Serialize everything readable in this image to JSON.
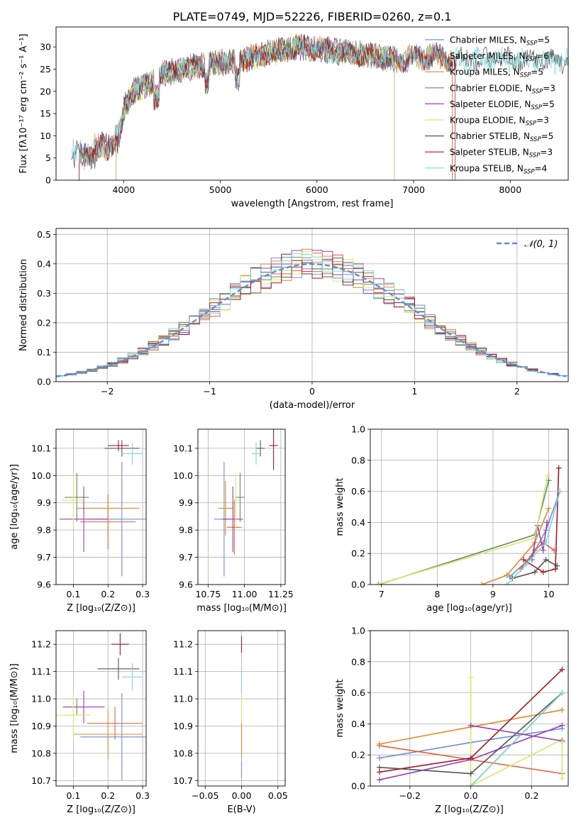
{
  "figure": {
    "title": "PLATE=0749, MJD=52226, FIBERID=0260, z=0.1"
  },
  "colors": {
    "Chabrier MILES": "#6f8ed9",
    "Salpeter MILES": "#e55f3c",
    "Kroupa MILES": "#e08a2e",
    "Chabrier ELODIE": "#5f8f5f",
    "Salpeter ELODIE": "#9a3fb5",
    "Kroupa ELODIE": "#d8e86a",
    "Chabrier STELIB": "#555555",
    "Salpeter STELIB": "#a31826",
    "Kroupa STELIB": "#7fd6db"
  },
  "chart_data": [
    {
      "id": "spectrum",
      "type": "line",
      "title": "PLATE=0749, MJD=52226, FIBERID=0260, z=0.1",
      "xlabel": "wavelength [Angstrom, rest frame]",
      "ylabel": "Flux [fλ10⁻¹⁷ erg cm⁻² s⁻¹ A⁻¹]",
      "xlim": [
        3300,
        8600
      ],
      "ylim": [
        0,
        34.5
      ],
      "xticks": [
        4000,
        5000,
        6000,
        7000,
        8000
      ],
      "yticks": [
        0,
        5,
        10,
        15,
        20,
        25,
        30
      ],
      "grid": false,
      "legend_position": "top-right",
      "legend": [
        {
          "label": "Chabrier MILES, N",
          "sub": "SSP",
          "suffix": "=5",
          "model": "Chabrier MILES"
        },
        {
          "label": "Salpeter MILES, N",
          "sub": "SSP",
          "suffix": "=6",
          "model": "Salpeter MILES"
        },
        {
          "label": "Kroupa MILES, N",
          "sub": "SSP",
          "suffix": "=5",
          "model": "Kroupa MILES"
        },
        {
          "label": "Chabrier ELODIE, N",
          "sub": "SSP",
          "suffix": "=3",
          "model": "Chabrier ELODIE"
        },
        {
          "label": "Salpeter ELODIE, N",
          "sub": "SSP",
          "suffix": "=5",
          "model": "Salpeter ELODIE"
        },
        {
          "label": "Kroupa ELODIE, N",
          "sub": "SSP",
          "suffix": "=3",
          "model": "Kroupa ELODIE"
        },
        {
          "label": "Chabrier STELIB, N",
          "sub": "SSP",
          "suffix": "=5",
          "model": "Chabrier STELIB"
        },
        {
          "label": "Salpeter STELIB, N",
          "sub": "SSP",
          "suffix": "=3",
          "model": "Salpeter STELIB"
        },
        {
          "label": "Kroupa STELIB, N",
          "sub": "SSP",
          "suffix": "=4",
          "model": "Kroupa STELIB"
        }
      ],
      "continuum": {
        "wavelength": [
          3450,
          3600,
          3800,
          3950,
          4000,
          4100,
          4300,
          4400,
          4600,
          4800,
          5000,
          5200,
          5400,
          5600,
          5800,
          6000,
          6200,
          6400,
          6600,
          6800,
          7000,
          7200,
          7400
        ],
        "flux": [
          7,
          7.5,
          9,
          11,
          16,
          20,
          22,
          24,
          25,
          26,
          26.5,
          27,
          28,
          29,
          30,
          29.5,
          29,
          28.5,
          28,
          27,
          27.5,
          28,
          27
        ]
      },
      "range_start": {
        "Chabrier MILES": 3540,
        "Salpeter MILES": 3540,
        "Kroupa MILES": 3540,
        "Chabrier ELODIE": 3920,
        "Salpeter ELODIE": 3920,
        "Kroupa ELODIE": 3920,
        "Chabrier STELIB": 3460,
        "Salpeter STELIB": 3540,
        "Kroupa STELIB": 3460
      },
      "range_end": {
        "Chabrier MILES": 7400,
        "Salpeter MILES": 7400,
        "Kroupa MILES": 7400,
        "Chabrier ELODIE": 6800,
        "Salpeter ELODIE": 6800,
        "Kroupa ELODIE": 6800,
        "Chabrier STELIB": 8600,
        "Salpeter STELIB": 7430,
        "Kroupa STELIB": 8600
      }
    },
    {
      "id": "residuals",
      "type": "line",
      "xlabel": "(data-model)/error",
      "ylabel": "Normed distribution",
      "xlim": [
        -2.5,
        2.5
      ],
      "ylim": [
        0,
        0.52
      ],
      "xticks": [
        -2,
        -1,
        0,
        1,
        2
      ],
      "xtick_labels": [
        "−2",
        "−1",
        "0",
        "1",
        "2"
      ],
      "yticks": [
        0,
        0.1,
        0.2,
        0.3,
        0.4,
        0.5
      ],
      "ytick_labels": [
        "0.0",
        "0.1",
        "0.2",
        "0.3",
        "0.4",
        "0.5"
      ],
      "grid": true,
      "legend_position": "top-right",
      "legend": [
        {
          "label": "𝒩(0, 1)",
          "style": "dashed",
          "color": "#5b8fd9"
        }
      ],
      "bin_width": 0.1
    },
    {
      "id": "age_vs_Z",
      "type": "scatter",
      "xlabel": "Z [log₁₀(Z/Z⊙)]",
      "ylabel": "age  [log₁₀(age/yr)]",
      "xlim": [
        0.05,
        0.31
      ],
      "ylim": [
        9.6,
        10.17
      ],
      "xticks": [
        0.1,
        0.2,
        0.3
      ],
      "yticks": [
        9.6,
        9.7,
        9.8,
        9.9,
        10.0,
        10.1
      ],
      "ytick_labels": [
        "9.6",
        "9.7",
        "9.8",
        "9.9",
        "10.0",
        "10.1"
      ],
      "grid": true,
      "points": [
        {
          "model": "Chabrier MILES",
          "x": 0.24,
          "y": 9.84,
          "xerr": 0.1,
          "yerr": 0.21
        },
        {
          "model": "Salpeter MILES",
          "x": 0.2,
          "y": 9.83,
          "xerr": 0.08,
          "yerr": 0.1
        },
        {
          "model": "Kroupa MILES",
          "x": 0.2,
          "y": 9.88,
          "xerr": 0.09,
          "yerr": 0.05
        },
        {
          "model": "Chabrier ELODIE",
          "x": 0.11,
          "y": 9.92,
          "xerr": 0.035,
          "yerr": 0.09
        },
        {
          "model": "Salpeter ELODIE",
          "x": 0.13,
          "y": 9.84,
          "xerr": 0.07,
          "yerr": 0.12
        },
        {
          "model": "Kroupa ELODIE",
          "x": 0.1,
          "y": 9.91,
          "xerr": 0.035,
          "yerr": 0.1
        },
        {
          "model": "Chabrier STELIB",
          "x": 0.24,
          "y": 10.1,
          "xerr": 0.05,
          "yerr": 0.03
        },
        {
          "model": "Salpeter STELIB",
          "x": 0.23,
          "y": 10.11,
          "xerr": 0.03,
          "yerr": 0.02
        },
        {
          "model": "Kroupa STELIB",
          "x": 0.27,
          "y": 10.08,
          "xerr": 0.03,
          "yerr": 0.04
        }
      ]
    },
    {
      "id": "age_vs_mass",
      "type": "scatter",
      "xlabel": "mass [log₁₀(M/M⊙)]",
      "ylabel": "",
      "xlim": [
        10.68,
        11.28
      ],
      "ylim": [
        9.6,
        10.17
      ],
      "xticks": [
        10.75,
        11.0,
        11.25
      ],
      "xtick_labels": [
        "10.75",
        "11.00",
        "11.25"
      ],
      "yticks": [
        9.6,
        9.7,
        9.8,
        9.9,
        10.0,
        10.1
      ],
      "ytick_labels": [
        "9.6",
        "9.7",
        "9.8",
        "9.9",
        "10.0",
        "10.1"
      ],
      "grid": true,
      "points": [
        {
          "model": "Chabrier MILES",
          "x": 10.86,
          "y": 9.84,
          "xerr": 0.07,
          "yerr": 0.21
        },
        {
          "model": "Salpeter MILES",
          "x": 10.93,
          "y": 9.81,
          "xerr": 0.05,
          "yerr": 0.1
        },
        {
          "model": "Kroupa MILES",
          "x": 10.87,
          "y": 9.88,
          "xerr": 0.05,
          "yerr": 0.1
        },
        {
          "model": "Chabrier ELODIE",
          "x": 10.97,
          "y": 9.92,
          "xerr": 0.03,
          "yerr": 0.09
        },
        {
          "model": "Salpeter ELODIE",
          "x": 10.92,
          "y": 9.84,
          "xerr": 0.07,
          "yerr": 0.12
        },
        {
          "model": "Kroupa ELODIE",
          "x": 10.94,
          "y": 9.91,
          "xerr": 0.03,
          "yerr": 0.1
        },
        {
          "model": "Chabrier STELIB",
          "x": 11.11,
          "y": 10.1,
          "xerr": 0.03,
          "yerr": 0.03
        },
        {
          "model": "Salpeter STELIB",
          "x": 11.2,
          "y": 10.11,
          "xerr": 0.03,
          "yerr": 0.09
        },
        {
          "model": "Kroupa STELIB",
          "x": 11.08,
          "y": 10.08,
          "xerr": 0.03,
          "yerr": 0.04
        }
      ]
    },
    {
      "id": "weight_vs_age",
      "type": "line",
      "xlabel": "age  [log₁₀(age/yr)]",
      "ylabel": "mass weight",
      "xlim": [
        6.8,
        10.35
      ],
      "ylim": [
        0,
        1.0
      ],
      "xticks": [
        7,
        8,
        9,
        10
      ],
      "yticks": [
        0,
        0.2,
        0.4,
        0.6,
        0.8,
        1.0
      ],
      "ytick_labels": [
        "0.0",
        "0.2",
        "0.4",
        "0.6",
        "0.8",
        "1.0"
      ],
      "grid": true,
      "series": [
        {
          "model": "Chabrier MILES",
          "x": [
            9.3,
            9.7,
            9.95,
            10.2
          ],
          "y": [
            0.05,
            0.18,
            0.35,
            0.6
          ]
        },
        {
          "model": "Salpeter MILES",
          "x": [
            9.5,
            9.75,
            9.9,
            10.1
          ],
          "y": [
            0.1,
            0.22,
            0.27,
            0.22
          ]
        },
        {
          "model": "Kroupa MILES",
          "x": [
            8.8,
            9.25,
            9.75,
            10.0
          ],
          "y": [
            0.0,
            0.06,
            0.27,
            0.49
          ]
        },
        {
          "model": "Chabrier ELODIE",
          "x": [
            6.95,
            9.75,
            10.0
          ],
          "y": [
            0.0,
            0.32,
            0.67
          ]
        },
        {
          "model": "Salpeter ELODIE",
          "x": [
            9.7,
            9.8,
            9.9,
            9.97
          ],
          "y": [
            0.16,
            0.38,
            0.22,
            0.4
          ]
        },
        {
          "model": "Kroupa ELODIE",
          "x": [
            6.92,
            9.75,
            9.98
          ],
          "y": [
            0.0,
            0.3,
            0.7
          ]
        },
        {
          "model": "Chabrier STELIB",
          "x": [
            9.35,
            9.75,
            9.95,
            10.15
          ],
          "y": [
            0.04,
            0.08,
            0.16,
            0.12
          ]
        },
        {
          "model": "Salpeter STELIB",
          "x": [
            9.55,
            9.9,
            10.12,
            10.18
          ],
          "y": [
            0.16,
            0.08,
            0.1,
            0.75
          ]
        },
        {
          "model": "Kroupa STELIB",
          "x": [
            9.25,
            9.6,
            9.95,
            10.2
          ],
          "y": [
            0.0,
            0.13,
            0.27,
            0.6
          ]
        }
      ]
    },
    {
      "id": "mass_vs_Z",
      "type": "scatter",
      "xlabel": "Z [log₁₀(Z/Z⊙)]",
      "ylabel": "mass [log₁₀(M/M⊙)]",
      "xlim": [
        0.05,
        0.31
      ],
      "ylim": [
        10.68,
        11.25
      ],
      "xticks": [
        0.1,
        0.2,
        0.3
      ],
      "yticks": [
        10.7,
        10.8,
        10.9,
        11.0,
        11.1,
        11.2
      ],
      "ytick_labels": [
        "10.7",
        "10.8",
        "10.9",
        "11.0",
        "11.1",
        "11.2"
      ],
      "grid": true,
      "points": [
        {
          "model": "Chabrier MILES",
          "x": 0.24,
          "y": 10.86,
          "xerr": 0.12,
          "yerr": 0.16
        },
        {
          "model": "Salpeter MILES",
          "x": 0.22,
          "y": 10.91,
          "xerr": 0.08,
          "yerr": 0.06
        },
        {
          "model": "Kroupa MILES",
          "x": 0.2,
          "y": 10.87,
          "xerr": 0.1,
          "yerr": 0.09
        },
        {
          "model": "Chabrier ELODIE",
          "x": 0.11,
          "y": 10.97,
          "xerr": 0.04,
          "yerr": 0.03
        },
        {
          "model": "Salpeter ELODIE",
          "x": 0.13,
          "y": 10.97,
          "xerr": 0.06,
          "yerr": 0.06
        },
        {
          "model": "Kroupa ELODIE",
          "x": 0.1,
          "y": 10.94,
          "xerr": 0.05,
          "yerr": 0.09
        },
        {
          "model": "Chabrier STELIB",
          "x": 0.23,
          "y": 11.11,
          "xerr": 0.06,
          "yerr": 0.04
        },
        {
          "model": "Salpeter STELIB",
          "x": 0.235,
          "y": 11.2,
          "xerr": 0.025,
          "yerr": 0.04
        },
        {
          "model": "Kroupa STELIB",
          "x": 0.27,
          "y": 11.08,
          "xerr": 0.03,
          "yerr": 0.05
        }
      ]
    },
    {
      "id": "mass_vs_ebv",
      "type": "scatter",
      "xlabel": "E(B-V)",
      "ylabel": "",
      "xlim": [
        -0.06,
        0.06
      ],
      "ylim": [
        10.68,
        11.25
      ],
      "xticks": [
        -0.05,
        0.0,
        0.05
      ],
      "xtick_labels": [
        "−0.05",
        "0.00",
        "0.05"
      ],
      "yticks": [
        10.7,
        10.8,
        10.9,
        11.0,
        11.1,
        11.2
      ],
      "ytick_labels": [
        "10.7",
        "10.8",
        "10.9",
        "11.0",
        "11.1",
        "11.2"
      ],
      "grid": true,
      "points": [
        {
          "model": "Chabrier MILES",
          "x": 0.0,
          "y": 10.74,
          "xerr": 0.0,
          "yerr": 0.03
        },
        {
          "model": "Kroupa MILES",
          "x": 0.0,
          "y": 10.85,
          "xerr": 0.0,
          "yerr": 0.07
        },
        {
          "model": "Kroupa ELODIE",
          "x": 0.0,
          "y": 10.97,
          "xerr": 0.0,
          "yerr": 0.06
        },
        {
          "model": "Kroupa STELIB",
          "x": 0.0,
          "y": 11.07,
          "xerr": 0.0,
          "yerr": 0.05
        },
        {
          "model": "Salpeter STELIB",
          "x": 0.0,
          "y": 11.2,
          "xerr": 0.0,
          "yerr": 0.03
        }
      ]
    },
    {
      "id": "weight_vs_Z",
      "type": "line",
      "xlabel": "Z [log₁₀(Z/Z⊙)]",
      "ylabel": "mass weight",
      "xlim": [
        -0.33,
        0.32
      ],
      "ylim": [
        0,
        1.0
      ],
      "xticks": [
        -0.2,
        0.0,
        0.2
      ],
      "xtick_labels": [
        "−0.2",
        "0.0",
        "0.2"
      ],
      "yticks": [
        0,
        0.2,
        0.4,
        0.6,
        0.8,
        1.0
      ],
      "ytick_labels": [
        "0.0",
        "0.2",
        "0.4",
        "0.6",
        "0.8",
        "1.0"
      ],
      "grid": true,
      "series": [
        {
          "model": "Chabrier MILES",
          "x": [
            -0.3,
            0.0,
            0.3
          ],
          "y": [
            0.18,
            0.28,
            0.37
          ]
        },
        {
          "model": "Salpeter MILES",
          "x": [
            -0.3,
            0.3
          ],
          "y": [
            0.26,
            0.08
          ]
        },
        {
          "model": "Kroupa MILES",
          "x": [
            -0.3,
            0.0,
            0.3
          ],
          "y": [
            0.27,
            0.38,
            0.49
          ]
        },
        {
          "model": "Chabrier ELODIE",
          "x": [
            0.0,
            0.3
          ],
          "y": [
            0.0,
            0.6
          ]
        },
        {
          "model": "Salpeter ELODIE",
          "x": [
            -0.3,
            0.0,
            0.3
          ],
          "y": [
            0.04,
            0.17,
            0.39
          ]
        },
        {
          "model": "Kroupa ELODIE",
          "x": [
            0.0,
            0.0,
            0.3
          ],
          "y": [
            0.7,
            0.0,
            0.3
          ]
        },
        {
          "model": "Chabrier STELIB",
          "x": [
            -0.3,
            0.0,
            0.3
          ],
          "y": [
            0.12,
            0.08,
            0.6
          ]
        },
        {
          "model": "Salpeter STELIB",
          "x": [
            -0.3,
            0.0,
            0.3
          ],
          "y": [
            0.09,
            0.18,
            0.75
          ]
        },
        {
          "model": "Kroupa STELIB",
          "x": [
            0.0,
            0.3
          ],
          "y": [
            0.0,
            0.6
          ]
        }
      ],
      "extra_series": [
        {
          "model": "Salpeter ELODIE",
          "x": [
            0.0,
            0.3
          ],
          "y": [
            0.39,
            0.29
          ]
        },
        {
          "model": "Kroupa ELODIE",
          "x": [
            0.3,
            0.3
          ],
          "y": [
            0.28,
            0.05
          ]
        }
      ]
    }
  ]
}
